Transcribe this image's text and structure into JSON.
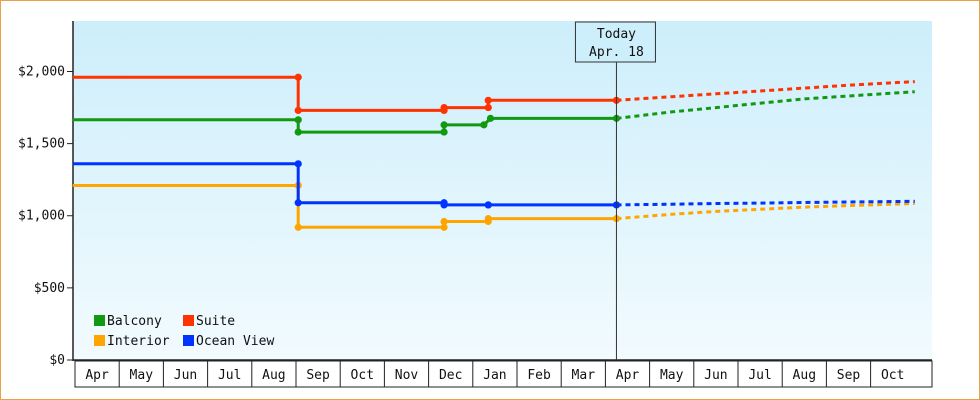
{
  "chart_data": {
    "type": "line",
    "title": "",
    "xlabel": "",
    "ylabel": "",
    "ylim": [
      0,
      2350
    ],
    "yticks": [
      {
        "value": 0,
        "label": "$0"
      },
      {
        "value": 500,
        "label": "$500"
      },
      {
        "value": 1000,
        "label": "$1,000"
      },
      {
        "value": 1500,
        "label": "$1,500"
      },
      {
        "value": 2000,
        "label": "$2,000"
      }
    ],
    "x_months": [
      "Apr",
      "May",
      "Jun",
      "Jul",
      "Aug",
      "Sep",
      "Oct",
      "Nov",
      "Dec",
      "Jan",
      "Feb",
      "Mar",
      "Apr",
      "May",
      "Jun",
      "Jul",
      "Aug",
      "Sep",
      "Oct"
    ],
    "today_marker": {
      "line1": "Today",
      "line2": "Apr. 18",
      "x": 12.25
    },
    "grid": false,
    "legend_position": "bottom-left",
    "series": [
      {
        "name": "Balcony",
        "color": "#119911",
        "points": [
          [
            -0.05,
            1665
          ],
          [
            5.05,
            1665
          ],
          [
            5.05,
            1580
          ],
          [
            8.35,
            1580
          ],
          [
            8.35,
            1630
          ],
          [
            9.25,
            1630
          ],
          [
            9.4,
            1675
          ],
          [
            12.25,
            1675
          ]
        ],
        "forecast": [
          [
            12.25,
            1675
          ],
          [
            13.5,
            1720
          ],
          [
            14.5,
            1750
          ],
          [
            15.5,
            1780
          ],
          [
            16.5,
            1810
          ],
          [
            17.5,
            1830
          ],
          [
            19.0,
            1860
          ]
        ]
      },
      {
        "name": "Suite",
        "color": "#ff3300",
        "points": [
          [
            -0.05,
            1960
          ],
          [
            5.05,
            1960
          ],
          [
            5.05,
            1730
          ],
          [
            8.35,
            1730
          ],
          [
            8.35,
            1750
          ],
          [
            9.35,
            1750
          ],
          [
            9.35,
            1800
          ],
          [
            12.25,
            1800
          ]
        ],
        "forecast": [
          [
            12.25,
            1800
          ],
          [
            13.5,
            1825
          ],
          [
            14.5,
            1845
          ],
          [
            15.5,
            1865
          ],
          [
            16.5,
            1885
          ],
          [
            17.5,
            1905
          ],
          [
            19.0,
            1930
          ]
        ]
      },
      {
        "name": "Interior",
        "color": "#ffa500",
        "points": [
          [
            -0.05,
            1210
          ],
          [
            5.05,
            1210
          ],
          [
            5.05,
            920
          ],
          [
            8.35,
            920
          ],
          [
            8.35,
            960
          ],
          [
            9.35,
            960
          ],
          [
            9.35,
            980
          ],
          [
            12.25,
            980
          ]
        ],
        "forecast": [
          [
            12.25,
            980
          ],
          [
            13.5,
            1010
          ],
          [
            14.5,
            1030
          ],
          [
            15.5,
            1045
          ],
          [
            16.5,
            1060
          ],
          [
            17.5,
            1070
          ],
          [
            19.0,
            1085
          ]
        ]
      },
      {
        "name": "Ocean View",
        "color": "#0033ff",
        "points": [
          [
            -0.05,
            1360
          ],
          [
            5.05,
            1360
          ],
          [
            5.05,
            1090
          ],
          [
            8.35,
            1090
          ],
          [
            8.35,
            1075
          ],
          [
            9.35,
            1075
          ],
          [
            9.35,
            1075
          ],
          [
            12.25,
            1075
          ]
        ],
        "forecast": [
          [
            12.25,
            1075
          ],
          [
            13.5,
            1080
          ],
          [
            14.5,
            1085
          ],
          [
            15.5,
            1088
          ],
          [
            16.5,
            1092
          ],
          [
            17.5,
            1095
          ],
          [
            19.0,
            1100
          ]
        ]
      }
    ]
  }
}
